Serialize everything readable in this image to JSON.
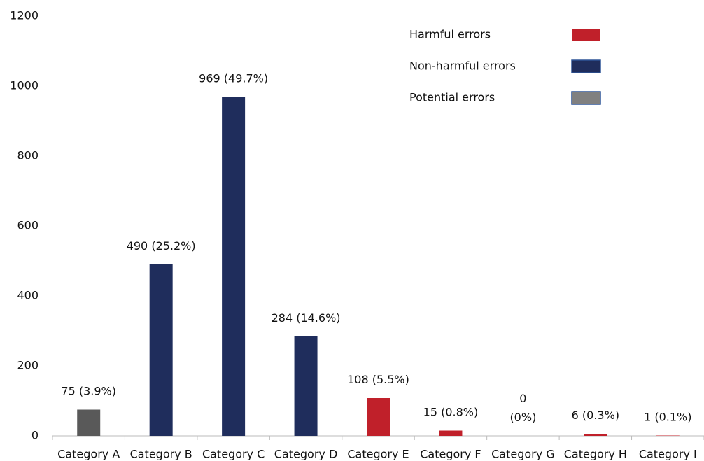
{
  "chart_data": {
    "type": "bar",
    "categories": [
      "Category A",
      "Category B",
      "Category C",
      "Category D",
      "Category E",
      "Category F",
      "Category G",
      "Category H",
      "Category I"
    ],
    "values": [
      75,
      490,
      969,
      284,
      108,
      15,
      0,
      6,
      1
    ],
    "value_labels": [
      "75 (3.9%)",
      "490 (25.2%)",
      "969 (49.7%)",
      "284 (14.6%)",
      "108 (5.5%)",
      "15 (0.8%)",
      "0\n(0%)",
      "6 (0.3%)",
      "1 (0.1%)"
    ],
    "colors": [
      "#595959",
      "#1f2d5c",
      "#1f2d5c",
      "#1f2d5c",
      "#c0202a",
      "#c0202a",
      "#c0202a",
      "#c0202a",
      "#c0202a"
    ],
    "legend": [
      {
        "name": "Harmful errors",
        "color": "#c0202a"
      },
      {
        "name": "Non-harmful errors",
        "color": "#1f2d5c"
      },
      {
        "name": "Potential errors",
        "color": "#808080"
      }
    ],
    "ylim": [
      0,
      1200
    ],
    "yticks": [
      0,
      200,
      400,
      600,
      800,
      1000,
      1200
    ],
    "grid": false
  }
}
